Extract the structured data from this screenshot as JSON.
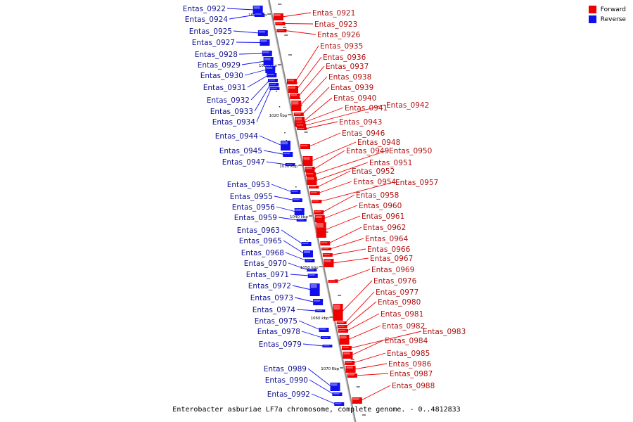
{
  "caption": "Enterobacter asburiae LF7a chromosome, complete genome. - 0..4812833",
  "legend": {
    "forward_label": "Forward",
    "reverse_label": "Reverse",
    "forward_color": "#ee0000",
    "reverse_color": "#1010ee"
  },
  "axis_ticks": [
    "1000 kbp",
    "1010 kbp",
    "1020 kbp",
    "1030 kbp",
    "1040 kbp",
    "1050 kbp",
    "1060 kbp",
    "1070 kbp"
  ],
  "reverse_genes": [
    "Entas_0922",
    "Entas_0924",
    "Entas_0925",
    "Entas_0927",
    "Entas_0928",
    "Entas_0929",
    "Entas_0930",
    "Entas_0931",
    "Entas_0932",
    "Entas_0933",
    "Entas_0934",
    "Entas_0944",
    "Entas_0945",
    "Entas_0947",
    "Entas_0953",
    "Entas_0955",
    "Entas_0956",
    "Entas_0959",
    "Entas_0963",
    "Entas_0965",
    "Entas_0968",
    "Entas_0970",
    "Entas_0971",
    "Entas_0972",
    "Entas_0973",
    "Entas_0974",
    "Entas_0975",
    "Entas_0978",
    "Entas_0979",
    "Entas_0989",
    "Entas_0990",
    "Entas_0992"
  ],
  "forward_genes": [
    "Entas_0921",
    "Entas_0923",
    "Entas_0926",
    "Entas_0935",
    "Entas_0936",
    "Entas_0937",
    "Entas_0938",
    "Entas_0939",
    "Entas_0940",
    "Entas_0941",
    "Entas_0942",
    "Entas_0943",
    "Entas_0946",
    "Entas_0948",
    "Entas_0949",
    "Entas_0950",
    "Entas_0951",
    "Entas_0952",
    "Entas_0954",
    "Entas_0957",
    "Entas_0958",
    "Entas_0960",
    "Entas_0961",
    "Entas_0962",
    "Entas_0964",
    "Entas_0966",
    "Entas_0967",
    "Entas_0969",
    "Entas_0976",
    "Entas_0977",
    "Entas_0980",
    "Entas_0981",
    "Entas_0982",
    "Entas_0983",
    "Entas_0984",
    "Entas_0985",
    "Entas_0986",
    "Entas_0987",
    "Entas_0988"
  ]
}
